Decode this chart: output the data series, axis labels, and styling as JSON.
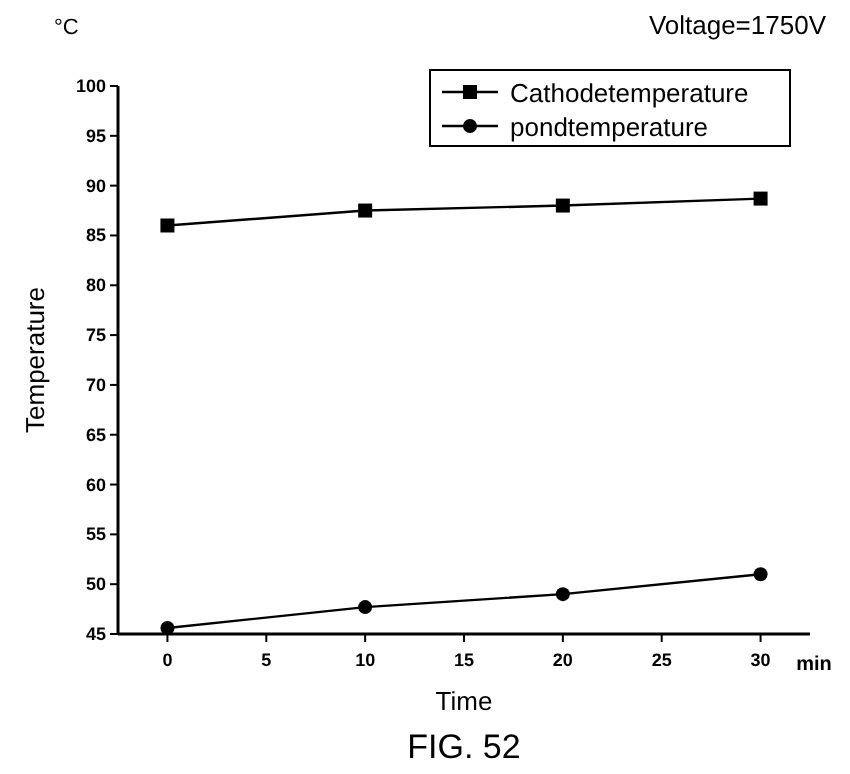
{
  "chart_data": {
    "type": "line",
    "xlabel": "Time",
    "ylabel": "Temperature",
    "annotations": [
      "°C",
      "Voltage=1750V",
      "min",
      "FIG. 52"
    ],
    "x": [
      0,
      10,
      20,
      30
    ],
    "series": [
      {
        "name": "Cathodetemperature",
        "color": "#000000",
        "marker": "square",
        "values": [
          86,
          87.5,
          88,
          88.7
        ]
      },
      {
        "name": "pondtemperature",
        "color": "#000000",
        "marker": "circle",
        "values": [
          45.6,
          47.7,
          49,
          51
        ]
      }
    ],
    "xlim": [
      -2.5,
      32.5
    ],
    "xticks": [
      0,
      5,
      10,
      15,
      20,
      25,
      30
    ],
    "ylim": [
      45,
      100
    ],
    "yticks": [
      45,
      50,
      55,
      60,
      65,
      70,
      75,
      80,
      85,
      90,
      95,
      100
    ],
    "legend": "top right",
    "grid": false,
    "line_style": "solid"
  }
}
